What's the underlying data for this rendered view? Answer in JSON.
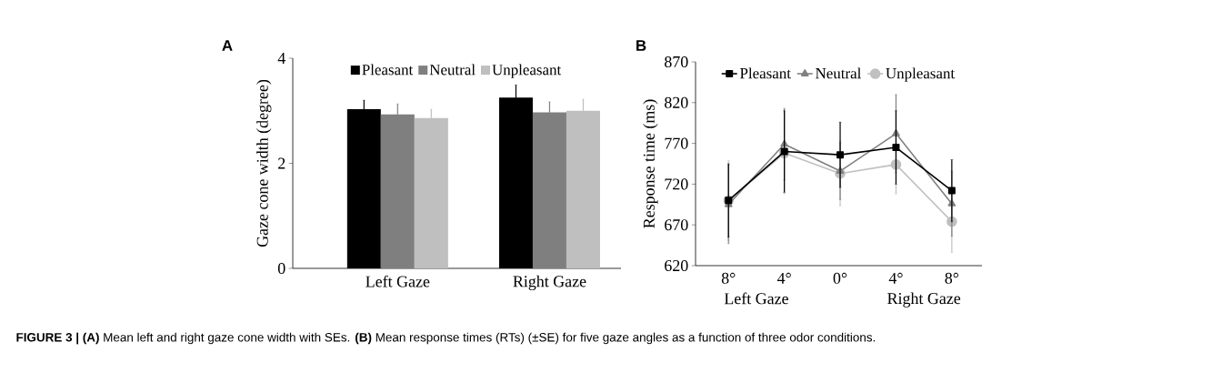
{
  "chart_data": [
    {
      "type": "bar",
      "title": "A",
      "ylabel": "Gaze cone width (degree)",
      "categories": [
        "Left Gaze",
        "Right Gaze"
      ],
      "ylim": [
        0,
        4
      ],
      "yticks": [
        0,
        2,
        4
      ],
      "legend": "top",
      "series": [
        {
          "name": "Pleasant",
          "color": "#000000",
          "values": [
            3.03,
            3.25
          ],
          "errors": [
            0.17,
            0.24
          ]
        },
        {
          "name": "Neutral",
          "color": "#7f7f7f",
          "values": [
            2.93,
            2.97
          ],
          "errors": [
            0.2,
            0.2
          ]
        },
        {
          "name": "Unpleasant",
          "color": "#bfbfbf",
          "values": [
            2.86,
            3.0
          ],
          "errors": [
            0.17,
            0.22
          ]
        }
      ],
      "annotations": [
        "**FIGURE 3 | (A)** Mean left and right gaze cone width with SEs. **(B)** Mean response times (RTs) (±SE) for five gaze angles as a function of three odor conditions."
      ]
    },
    {
      "type": "line",
      "title": "B",
      "ylabel": "Response time (ms)",
      "categories": [
        "8°",
        "4°",
        "0°",
        "4°",
        "8°"
      ],
      "ylim": [
        620,
        870
      ],
      "yticks": [
        620,
        670,
        720,
        770,
        820,
        870
      ],
      "legend": "top",
      "series": [
        {
          "name": "Pleasant",
          "color": "#000000",
          "marker": "square",
          "values": [
            700,
            760,
            756,
            765,
            712
          ],
          "errors": [
            45,
            50,
            40,
            45,
            38
          ]
        },
        {
          "name": "Neutral",
          "color": "#808080",
          "marker": "triangle",
          "values": [
            695,
            769,
            736,
            782,
            696
          ],
          "errors": [
            48,
            44,
            35,
            48,
            40
          ]
        },
        {
          "name": "Unpleasant",
          "color": "#c0c0c0",
          "marker": "circle",
          "values": [
            700,
            758,
            733,
            744,
            674
          ],
          "errors": [
            49,
            50,
            40,
            36,
            38
          ]
        }
      ],
      "annotations": [
        "Left Gaze",
        "Right Gaze"
      ]
    }
  ]
}
